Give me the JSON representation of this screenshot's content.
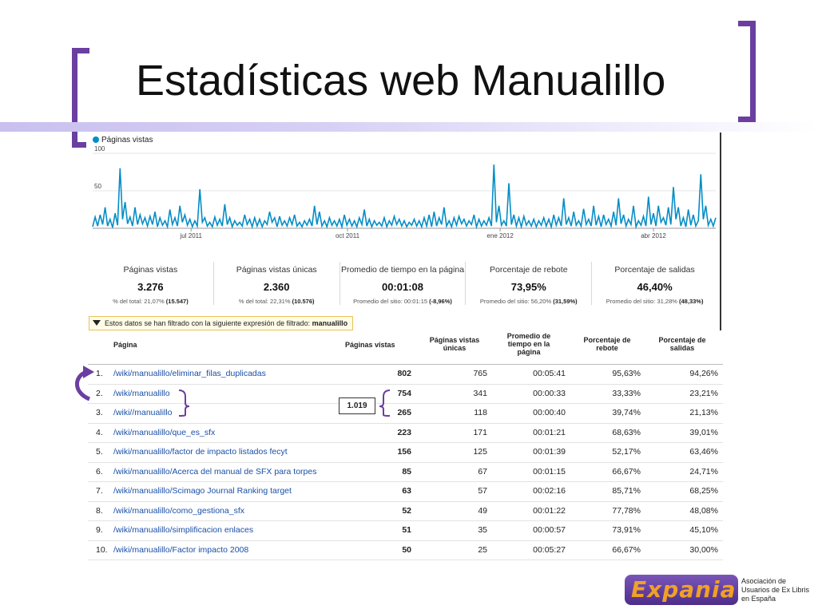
{
  "slide": {
    "title": "Estadísticas web Manualillo"
  },
  "chart_data": {
    "type": "line",
    "series": [
      {
        "name": "Páginas vistas",
        "values": [
          2,
          15,
          3,
          18,
          5,
          28,
          3,
          12,
          1,
          20,
          4,
          80,
          12,
          35,
          6,
          15,
          3,
          28,
          5,
          18,
          6,
          14,
          3,
          16,
          5,
          22,
          2,
          14,
          4,
          10,
          2,
          25,
          5,
          14,
          3,
          30,
          8,
          18,
          4,
          12,
          2,
          10,
          3,
          52,
          8,
          14,
          3,
          8,
          2,
          15,
          4,
          12,
          3,
          32,
          5,
          14,
          2,
          10,
          4,
          8,
          3,
          18,
          5,
          12,
          2,
          14,
          3,
          12,
          2,
          10,
          5,
          22,
          8,
          14,
          2,
          16,
          4,
          10,
          3,
          14,
          5,
          18,
          3,
          8,
          2,
          10,
          4,
          12,
          3,
          30,
          5,
          22,
          3,
          10,
          2,
          14,
          4,
          10,
          3,
          12,
          2,
          18,
          4,
          12,
          3,
          10,
          2,
          14,
          5,
          25,
          3,
          12,
          2,
          10,
          4,
          8,
          3,
          14,
          2,
          10,
          4,
          16,
          5,
          12,
          3,
          10,
          2,
          8,
          4,
          12,
          3,
          10,
          2,
          14,
          3,
          18,
          2,
          22,
          3,
          14,
          5,
          28,
          3,
          10,
          2,
          14,
          4,
          16,
          6,
          12,
          3,
          10,
          5,
          18,
          2,
          12,
          3,
          10,
          4,
          14,
          3,
          85,
          8,
          30,
          4,
          10,
          3,
          60,
          5,
          18,
          3,
          14,
          2,
          16,
          4,
          10,
          3,
          12,
          2,
          10,
          4,
          14,
          3,
          12,
          2,
          18,
          4,
          14,
          3,
          40,
          5,
          14,
          3,
          22,
          4,
          10,
          3,
          26,
          5,
          12,
          3,
          30,
          4,
          16,
          2,
          18,
          5,
          12,
          3,
          22,
          4,
          40,
          6,
          18,
          3,
          12,
          5,
          30,
          2,
          10,
          4,
          16,
          3,
          42,
          5,
          20,
          3,
          30,
          8,
          14,
          4,
          28,
          5,
          55,
          12,
          28,
          3,
          14,
          2,
          25,
          4,
          18,
          3,
          10,
          72,
          12,
          30,
          4,
          12,
          3,
          14
        ]
      }
    ],
    "x_tick_labels": [
      "jul 2011",
      "oct 2011",
      "ene 2012",
      "abr 2012"
    ],
    "y_tick_labels": [
      "100",
      "50"
    ],
    "ylim": [
      0,
      100
    ],
    "color": "#058dc7"
  },
  "summary": [
    {
      "label": "Páginas vistas",
      "value": "3.276",
      "sub_prefix": "% del total: 21,07% ",
      "sub_bold": "(15.547)"
    },
    {
      "label": "Páginas vistas únicas",
      "value": "2.360",
      "sub_prefix": "% del total: 22,31% ",
      "sub_bold": "(10.576)"
    },
    {
      "label": "Promedio de tiempo en la página",
      "value": "00:01:08",
      "sub_prefix": "Promedio del sitio: 00:01:15 ",
      "sub_bold": "(-8,96%)"
    },
    {
      "label": "Porcentaje de rebote",
      "value": "73,95%",
      "sub_prefix": "Promedio del sitio: 56,20% ",
      "sub_bold": "(31,59%)"
    },
    {
      "label": "Porcentaje de salidas",
      "value": "46,40%",
      "sub_prefix": "Promedio del sitio: 31,28% ",
      "sub_bold": "(48,33%)"
    }
  ],
  "filter": {
    "text": "Estos datos se han filtrado con la siguiente expresión de filtrado: ",
    "expression": "manualillo"
  },
  "table": {
    "headers": {
      "page": "Página",
      "views": "Páginas vistas",
      "unique_1": "Páginas vistas",
      "unique_2": "únicas",
      "time_1": "Promedio de",
      "time_2": "tiempo en la",
      "time_3": "página",
      "bounce_1": "Porcentaje de",
      "bounce_2": "rebote",
      "exit_1": "Porcentaje de",
      "exit_2": "salidas"
    },
    "rows": [
      {
        "num": "1.",
        "page": "/wiki/manualillo/eliminar_filas_duplicadas",
        "views": "802",
        "unique": "765",
        "time": "00:05:41",
        "bounce": "95,63%",
        "exit": "94,26%"
      },
      {
        "num": "2.",
        "page": "/wiki/manualillo",
        "views": "754",
        "unique": "341",
        "time": "00:00:33",
        "bounce": "33,33%",
        "exit": "23,21%"
      },
      {
        "num": "3.",
        "page": "/wiki//manualillo",
        "views": "265",
        "unique": "118",
        "time": "00:00:40",
        "bounce": "39,74%",
        "exit": "21,13%"
      },
      {
        "num": "4.",
        "page": "/wiki/manualillo/que_es_sfx",
        "views": "223",
        "unique": "171",
        "time": "00:01:21",
        "bounce": "68,63%",
        "exit": "39,01%"
      },
      {
        "num": "5.",
        "page": "/wiki/manualillo/factor de impacto listados fecyt",
        "views": "156",
        "unique": "125",
        "time": "00:01:39",
        "bounce": "52,17%",
        "exit": "63,46%"
      },
      {
        "num": "6.",
        "page": "/wiki/manualillo/Acerca del manual de SFX para torpes",
        "views": "85",
        "unique": "67",
        "time": "00:01:15",
        "bounce": "66,67%",
        "exit": "24,71%"
      },
      {
        "num": "7.",
        "page": "/wiki/manualillo/Scimago Journal Ranking target",
        "views": "63",
        "unique": "57",
        "time": "00:02:16",
        "bounce": "85,71%",
        "exit": "68,25%"
      },
      {
        "num": "8.",
        "page": "/wiki/manualillo/como_gestiona_sfx",
        "views": "52",
        "unique": "49",
        "time": "00:01:22",
        "bounce": "77,78%",
        "exit": "48,08%"
      },
      {
        "num": "9.",
        "page": "/wiki/manualillo/simplificacion enlaces",
        "views": "51",
        "unique": "35",
        "time": "00:00:57",
        "bounce": "73,91%",
        "exit": "45,10%"
      },
      {
        "num": "10.",
        "page": "/wiki/manualillo/Factor impacto 2008",
        "views": "50",
        "unique": "25",
        "time": "00:05:27",
        "bounce": "66,67%",
        "exit": "30,00%"
      }
    ]
  },
  "annotation": {
    "sum": "1.019"
  },
  "logo": {
    "text": "Expania",
    "caption_1": "Asociación de",
    "caption_2": "Usuarios de Ex Libris",
    "caption_3": "en España",
    "color_orange": "#f0a126",
    "color_purple": "#6b3fa0"
  }
}
